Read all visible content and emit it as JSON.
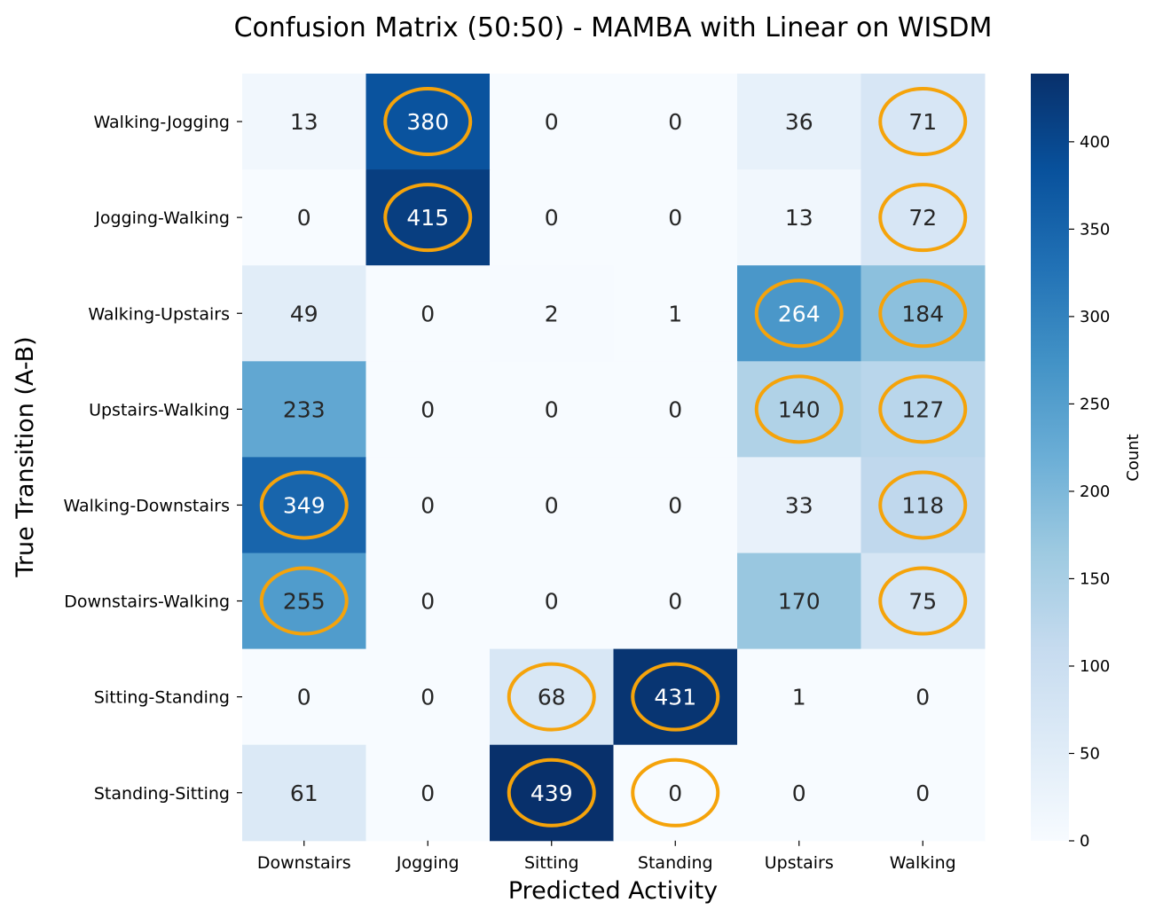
{
  "chart_data": {
    "type": "heatmap",
    "title": "Confusion Matrix (50:50) - MAMBA with Linear on WISDM",
    "xlabel": "Predicted Activity",
    "ylabel": "True Transition (A-B)",
    "x_categories": [
      "Downstairs",
      "Jogging",
      "Sitting",
      "Standing",
      "Upstairs",
      "Walking"
    ],
    "y_categories": [
      "Walking-Jogging",
      "Jogging-Walking",
      "Walking-Upstairs",
      "Upstairs-Walking",
      "Walking-Downstairs",
      "Downstairs-Walking",
      "Sitting-Standing",
      "Standing-Sitting"
    ],
    "values": [
      [
        13,
        380,
        0,
        0,
        36,
        71
      ],
      [
        0,
        415,
        0,
        0,
        13,
        72
      ],
      [
        49,
        0,
        2,
        1,
        264,
        184
      ],
      [
        233,
        0,
        0,
        0,
        140,
        127
      ],
      [
        349,
        0,
        0,
        0,
        33,
        118
      ],
      [
        255,
        0,
        0,
        0,
        170,
        75
      ],
      [
        0,
        0,
        68,
        431,
        1,
        0
      ],
      [
        61,
        0,
        439,
        0,
        0,
        0
      ]
    ],
    "highlighted_cells": [
      [
        0,
        1
      ],
      [
        0,
        5
      ],
      [
        1,
        1
      ],
      [
        1,
        5
      ],
      [
        2,
        4
      ],
      [
        2,
        5
      ],
      [
        3,
        4
      ],
      [
        3,
        5
      ],
      [
        4,
        0
      ],
      [
        4,
        5
      ],
      [
        5,
        0
      ],
      [
        5,
        5
      ],
      [
        6,
        2
      ],
      [
        6,
        3
      ],
      [
        7,
        2
      ],
      [
        7,
        3
      ]
    ],
    "colorbar": {
      "label": "Count",
      "min": 0,
      "max": 439,
      "ticks": [
        0,
        50,
        100,
        150,
        200,
        250,
        300,
        350,
        400
      ]
    },
    "colormap": "Blues",
    "highlight_color": "#f5a30a"
  }
}
